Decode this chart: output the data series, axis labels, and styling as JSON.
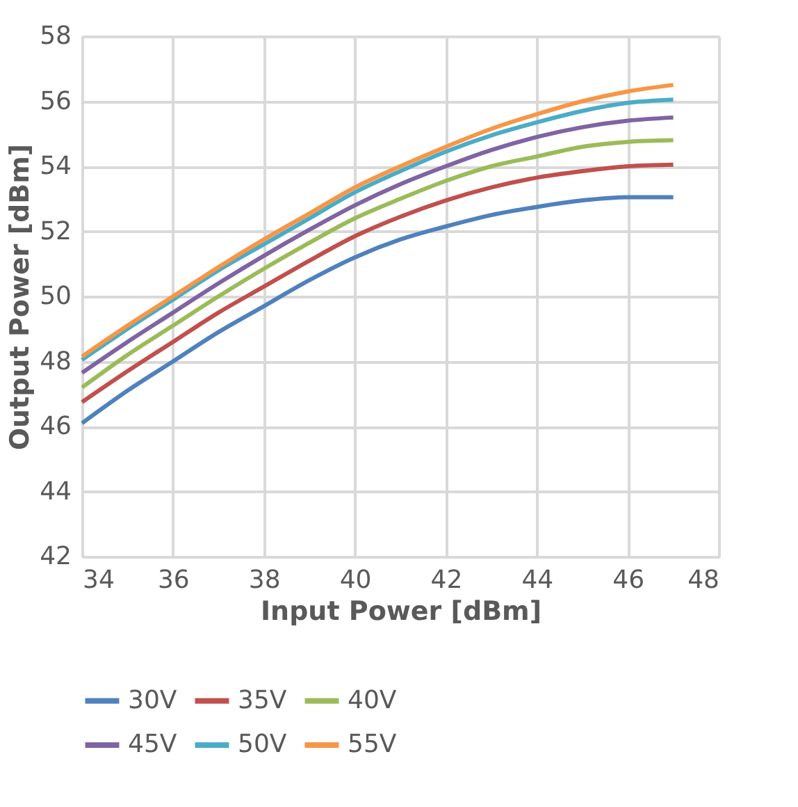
{
  "chart_data": {
    "type": "line",
    "xlabel": "Input Power [dBm]",
    "ylabel": "Output Power [dBm]",
    "x": [
      34,
      35,
      36,
      37,
      38,
      39,
      40,
      41,
      42,
      43,
      44,
      45,
      46,
      47
    ],
    "series": [
      {
        "name": "30V",
        "color": "#4f81bd",
        "values": [
          46.1,
          47.1,
          48.0,
          48.9,
          49.7,
          50.5,
          51.2,
          51.75,
          52.15,
          52.5,
          52.75,
          52.95,
          53.05,
          53.05
        ]
      },
      {
        "name": "35V",
        "color": "#c0504d",
        "values": [
          46.75,
          47.7,
          48.6,
          49.5,
          50.3,
          51.1,
          51.85,
          52.45,
          52.95,
          53.35,
          53.65,
          53.85,
          54.0,
          54.05
        ]
      },
      {
        "name": "40V",
        "color": "#9bbb59",
        "values": [
          47.2,
          48.2,
          49.1,
          50.0,
          50.85,
          51.65,
          52.4,
          53.0,
          53.55,
          54.0,
          54.3,
          54.6,
          54.75,
          54.8
        ]
      },
      {
        "name": "45V",
        "color": "#8064a2",
        "values": [
          47.65,
          48.6,
          49.5,
          50.4,
          51.25,
          52.05,
          52.8,
          53.45,
          54.0,
          54.5,
          54.9,
          55.2,
          55.4,
          55.5
        ]
      },
      {
        "name": "50V",
        "color": "#4bacc6",
        "values": [
          48.05,
          49.0,
          49.9,
          50.8,
          51.6,
          52.4,
          53.2,
          53.85,
          54.45,
          54.95,
          55.35,
          55.7,
          55.95,
          56.05
        ]
      },
      {
        "name": "55V",
        "color": "#f79646",
        "values": [
          48.15,
          49.1,
          50.0,
          50.9,
          51.75,
          52.55,
          53.35,
          54.0,
          54.6,
          55.15,
          55.6,
          56.0,
          56.3,
          56.5
        ]
      }
    ],
    "xlim": [
      34,
      48
    ],
    "xticks": [
      34,
      36,
      38,
      40,
      42,
      44,
      46,
      48
    ],
    "ylim": [
      42,
      58
    ],
    "yticks": [
      42,
      44,
      46,
      48,
      50,
      52,
      54,
      56,
      58
    ],
    "grid": true,
    "legend": "bottom",
    "marker": "none",
    "line_style": "solid"
  }
}
